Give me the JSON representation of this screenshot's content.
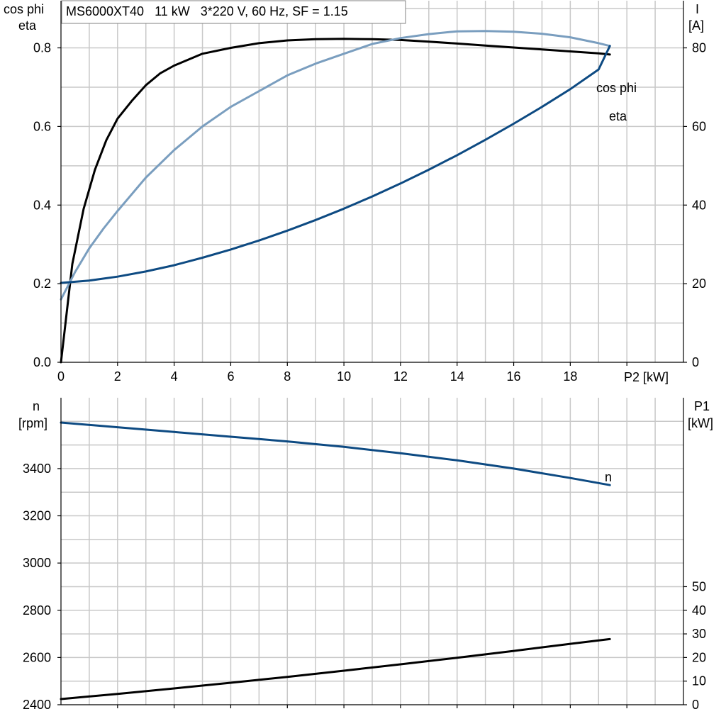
{
  "colors": {
    "eta": "#000000",
    "cos_phi": "#7a9ebf",
    "current": "#0d4a82",
    "speed": "#0d4a82",
    "p1": "#000000",
    "grid": "#c8c8c8"
  },
  "chart_data": [
    {
      "type": "line",
      "title": "MS6000XT40   11 kW   3*220 V, 60 Hz, SF = 1.15",
      "xlabel": "P2 [kW]",
      "ylabel_left_line1": "cos phi",
      "ylabel_left_line2": "eta",
      "ylabel_right_line1": "I",
      "ylabel_right_line2": "[A]",
      "xlim": [
        0,
        22
      ],
      "ylim_left": [
        0,
        0.92
      ],
      "ylim_right": [
        0,
        92
      ],
      "grid": true,
      "x_ticks": [
        0,
        2,
        4,
        6,
        8,
        10,
        12,
        14,
        16,
        18
      ],
      "x_tick_labels": [
        "0",
        "2",
        "4",
        "6",
        "8",
        "10",
        "12",
        "14",
        "16",
        "18"
      ],
      "y_left_ticks": [
        0,
        0.2,
        0.4,
        0.6,
        0.8
      ],
      "y_left_tick_labels": [
        "0.0",
        "0.2",
        "0.4",
        "0.6",
        "0.8"
      ],
      "y_right_ticks": [
        0,
        20,
        40,
        60,
        80
      ],
      "y_right_tick_labels": [
        "0",
        "20",
        "40",
        "60",
        "80"
      ],
      "series": [
        {
          "name": "eta",
          "axis": "left",
          "color": "#000000",
          "x": [
            0,
            0.4,
            0.8,
            1.2,
            1.6,
            2,
            2.5,
            3,
            3.5,
            4,
            5,
            6,
            7,
            8,
            9,
            10,
            11,
            12,
            13,
            14,
            15,
            16,
            17,
            18,
            19,
            19.4
          ],
          "y": [
            0,
            0.25,
            0.39,
            0.49,
            0.565,
            0.62,
            0.665,
            0.705,
            0.735,
            0.755,
            0.785,
            0.8,
            0.812,
            0.819,
            0.822,
            0.823,
            0.822,
            0.82,
            0.816,
            0.811,
            0.806,
            0.801,
            0.796,
            0.791,
            0.786,
            0.783
          ]
        },
        {
          "name": "cos phi",
          "axis": "left",
          "color": "#7a9ebf",
          "x": [
            0,
            0.5,
            1,
            1.5,
            2,
            3,
            4,
            5,
            6,
            7,
            8,
            9,
            10,
            11,
            12,
            13,
            14,
            15,
            16,
            17,
            18,
            19,
            19.4
          ],
          "y": [
            0.16,
            0.23,
            0.29,
            0.34,
            0.385,
            0.47,
            0.54,
            0.6,
            0.65,
            0.69,
            0.73,
            0.76,
            0.785,
            0.81,
            0.825,
            0.835,
            0.842,
            0.843,
            0.841,
            0.836,
            0.827,
            0.812,
            0.805
          ]
        },
        {
          "name": "I",
          "axis": "right",
          "color": "#0d4a82",
          "x": [
            0,
            1,
            2,
            3,
            4,
            5,
            6,
            7,
            8,
            9,
            10,
            11,
            12,
            13,
            14,
            15,
            16,
            17,
            18,
            19,
            19.4
          ],
          "y": [
            20.2,
            20.8,
            21.8,
            23.1,
            24.7,
            26.6,
            28.7,
            31.0,
            33.5,
            36.2,
            39.1,
            42.2,
            45.5,
            49.0,
            52.7,
            56.6,
            60.7,
            65.0,
            69.5,
            74.5,
            80.5
          ]
        }
      ],
      "curve_labels": [
        {
          "text": "cos phi",
          "series": "cos phi"
        },
        {
          "text": "eta",
          "series": "eta"
        }
      ]
    },
    {
      "type": "line",
      "xlabel": "",
      "ylabel_left_line1": "n",
      "ylabel_left_line2": "[rpm]",
      "ylabel_right_line1": "P1",
      "ylabel_right_line2": "[kW]",
      "xlim": [
        0,
        22
      ],
      "ylim_left": [
        2400,
        3700
      ],
      "ylim_right": [
        0,
        130
      ],
      "grid": true,
      "y_left_ticks": [
        2400,
        2600,
        2800,
        3000,
        3200,
        3400
      ],
      "y_left_tick_labels": [
        "2400",
        "2600",
        "2800",
        "3000",
        "3200",
        "3400"
      ],
      "y_right_ticks": [
        0,
        10,
        20,
        30,
        40,
        50
      ],
      "y_right_tick_labels": [
        "0",
        "10",
        "20",
        "30",
        "40",
        "50"
      ],
      "series": [
        {
          "name": "n",
          "axis": "left",
          "color": "#0d4a82",
          "x": [
            0,
            2,
            4,
            6,
            8,
            10,
            12,
            14,
            16,
            18,
            19.4
          ],
          "y": [
            3595,
            3575,
            3555,
            3535,
            3515,
            3492,
            3465,
            3435,
            3400,
            3360,
            3330
          ]
        },
        {
          "name": "P1",
          "axis": "right",
          "color": "#000000",
          "x": [
            0,
            2,
            4,
            6,
            8,
            10,
            12,
            14,
            16,
            18,
            19.4
          ],
          "y": [
            2.4,
            4.6,
            6.9,
            9.3,
            11.8,
            14.4,
            17.1,
            19.9,
            22.8,
            25.8,
            27.8
          ]
        }
      ],
      "curve_labels": [
        {
          "text": "n",
          "series": "n"
        }
      ]
    }
  ]
}
